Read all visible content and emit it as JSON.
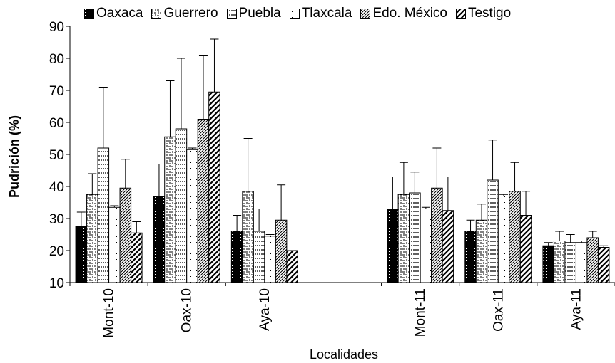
{
  "chart_data": {
    "type": "bar",
    "xlabel": "Localidades",
    "ylabel": "Pudrición (%)",
    "ylim": [
      10,
      90
    ],
    "yticks": [
      10,
      20,
      30,
      40,
      50,
      60,
      70,
      80,
      90
    ],
    "categories": [
      "Mont-10",
      "Oax-10",
      "Aya-10",
      "Mont-11",
      "Oax-11",
      "Aya-11"
    ],
    "series": [
      {
        "name": "Oaxaca",
        "values": [
          27.5,
          37.0,
          26.0,
          33.0,
          26.0,
          21.5
        ],
        "errors": [
          4.5,
          10.0,
          5.0,
          10.0,
          3.5,
          1.0
        ]
      },
      {
        "name": "Guerrero",
        "values": [
          37.5,
          55.5,
          38.5,
          37.5,
          29.5,
          23.0
        ],
        "errors": [
          6.5,
          17.5,
          16.5,
          10.0,
          5.0,
          3.0
        ]
      },
      {
        "name": "Puebla",
        "values": [
          52.0,
          58.0,
          26.0,
          38.0,
          42.0,
          22.5
        ],
        "errors": [
          19.0,
          22.0,
          7.0,
          6.5,
          12.5,
          2.5
        ]
      },
      {
        "name": "Tlaxcala",
        "values": [
          33.5,
          51.5,
          24.5,
          33.0,
          37.0,
          22.5
        ],
        "errors": [
          0.5,
          0.5,
          0.5,
          0.5,
          0.5,
          0.5
        ]
      },
      {
        "name": "Edo. México",
        "values": [
          39.5,
          61.0,
          29.5,
          39.5,
          38.5,
          24.0
        ],
        "errors": [
          9.0,
          20.0,
          11.0,
          12.5,
          9.0,
          2.0
        ]
      },
      {
        "name": "Testigo",
        "values": [
          25.5,
          69.5,
          20.0,
          32.5,
          31.0,
          21.0
        ],
        "errors": [
          3.5,
          16.5,
          0,
          10.5,
          7.5,
          0.5
        ]
      }
    ],
    "legend_position": "top",
    "grid": false,
    "colors": {
      "outline": "#000000",
      "fill": "#ffffff"
    }
  }
}
